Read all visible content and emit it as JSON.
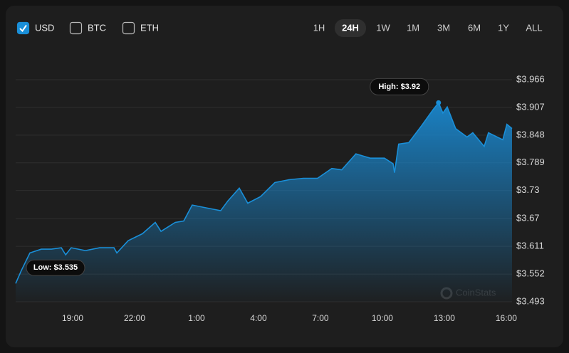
{
  "currencies": [
    {
      "label": "USD",
      "checked": true
    },
    {
      "label": "BTC",
      "checked": false
    },
    {
      "label": "ETH",
      "checked": false
    }
  ],
  "ranges": [
    {
      "label": "1H",
      "active": false
    },
    {
      "label": "24H",
      "active": true
    },
    {
      "label": "1W",
      "active": false
    },
    {
      "label": "1M",
      "active": false
    },
    {
      "label": "3M",
      "active": false
    },
    {
      "label": "6M",
      "active": false
    },
    {
      "label": "1Y",
      "active": false
    },
    {
      "label": "ALL",
      "active": false
    }
  ],
  "chart_data": {
    "type": "area",
    "color": "#1a8fd8",
    "grid": true,
    "watermark": "CoinStats",
    "annotations": {
      "high": "High: $3.92",
      "low": "Low: $3.535"
    },
    "x": [
      0.24,
      0.52,
      0.93,
      1.48,
      1.97,
      2.45,
      2.66,
      2.93,
      3.62,
      4.31,
      5.0,
      5.14,
      5.69,
      6.38,
      7.0,
      7.28,
      7.97,
      8.38,
      8.79,
      9.48,
      10.17,
      10.52,
      11.07,
      11.48,
      12.1,
      12.79,
      13.48,
      14.17,
      14.86,
      15.55,
      16.03,
      16.72,
      17.41,
      18.1,
      18.52,
      18.59,
      18.79,
      19.28,
      19.9,
      20.45,
      20.72,
      20.93,
      21.14,
      21.55,
      22.1,
      22.38,
      22.93,
      23.14,
      23.83,
      24.03,
      24.28
    ],
    "series": [
      {
        "name": "USD",
        "color": "#1a8fd8",
        "values": [
          3.532,
          3.56,
          3.597,
          3.605,
          3.605,
          3.608,
          3.593,
          3.608,
          3.602,
          3.608,
          3.608,
          3.597,
          3.623,
          3.638,
          3.662,
          3.643,
          3.662,
          3.665,
          3.699,
          3.693,
          3.687,
          3.708,
          3.735,
          3.703,
          3.717,
          3.747,
          3.753,
          3.756,
          3.756,
          3.777,
          3.774,
          3.808,
          3.799,
          3.799,
          3.787,
          3.768,
          3.829,
          3.832,
          3.868,
          3.902,
          3.917,
          3.895,
          3.908,
          3.862,
          3.844,
          3.853,
          3.824,
          3.853,
          3.838,
          3.871,
          3.862
        ]
      }
    ],
    "xlim": [
      0.24,
      24.28
    ],
    "xticks": [
      {
        "value": 3,
        "label": "19:00"
      },
      {
        "value": 6,
        "label": "22:00"
      },
      {
        "value": 9,
        "label": "1:00"
      },
      {
        "value": 12,
        "label": "4:00"
      },
      {
        "value": 15,
        "label": "7:00"
      },
      {
        "value": 18,
        "label": "10:00"
      },
      {
        "value": 21,
        "label": "13:00"
      },
      {
        "value": 24,
        "label": "16:00"
      }
    ],
    "ylim": [
      3.493,
      3.966
    ],
    "yticks": [
      {
        "value": 3.493,
        "label": "$3.493"
      },
      {
        "value": 3.552,
        "label": "$3.552"
      },
      {
        "value": 3.611,
        "label": "$3.611"
      },
      {
        "value": 3.67,
        "label": "$3.67"
      },
      {
        "value": 3.73,
        "label": "$3.73"
      },
      {
        "value": 3.789,
        "label": "$3.789"
      },
      {
        "value": 3.848,
        "label": "$3.848"
      },
      {
        "value": 3.907,
        "label": "$3.907"
      },
      {
        "value": 3.966,
        "label": "$3.966"
      }
    ]
  }
}
